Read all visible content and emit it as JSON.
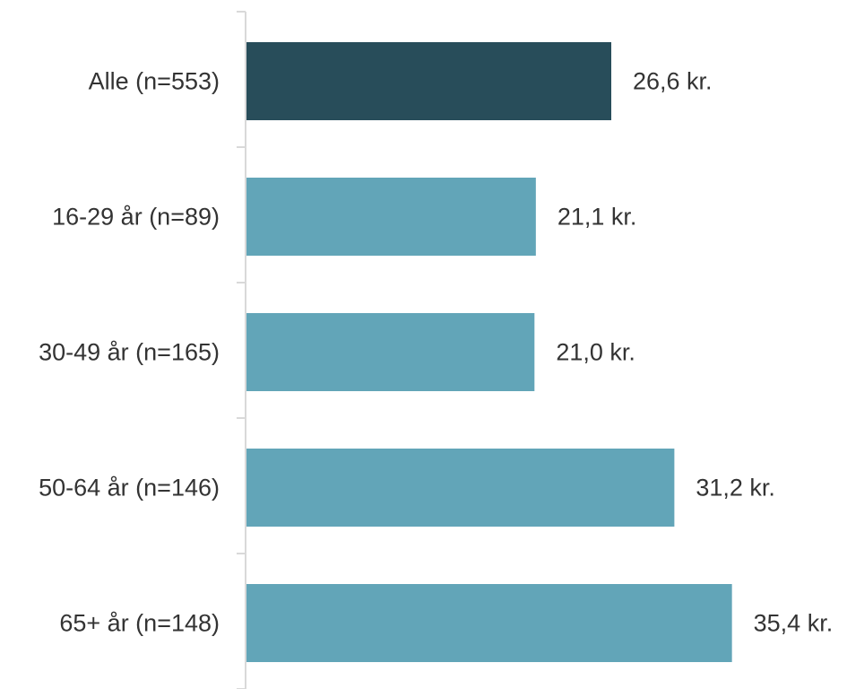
{
  "chart_data": {
    "type": "bar",
    "orientation": "horizontal",
    "categories": [
      "Alle (n=553)",
      "16-29 år (n=89)",
      "30-49 år (n=165)",
      "50-64 år (n=146)",
      "65+ år (n=148)"
    ],
    "values": [
      26.6,
      21.1,
      21.0,
      31.2,
      35.4
    ],
    "value_labels": [
      "26,6 kr.",
      "21,1 kr.",
      "21,0 kr.",
      "31,2 kr.",
      "35,4 kr."
    ],
    "bar_colors": [
      "#284d5a",
      "#62a5b8",
      "#62a5b8",
      "#62a5b8",
      "#62a5b8"
    ],
    "axis_color": "#d9d9d9",
    "title": "",
    "xlabel": "",
    "ylabel": "",
    "xlim": [
      0,
      40
    ],
    "grid": false,
    "legend": false
  }
}
